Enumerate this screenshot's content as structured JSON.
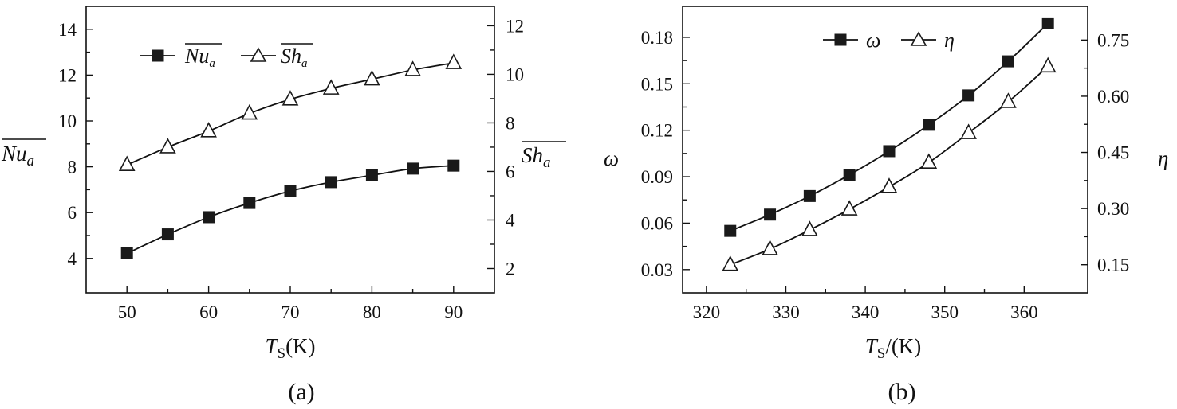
{
  "chart_data": [
    {
      "type": "line",
      "panel_label": "(a)",
      "xlabel": {
        "main": "T",
        "sub": "S",
        "suffix": "(K)"
      },
      "x": [
        50,
        55,
        60,
        65,
        70,
        75,
        80,
        85,
        90
      ],
      "xlim": [
        45,
        95
      ],
      "xticks": [
        50,
        60,
        70,
        80,
        90
      ],
      "y_left": {
        "label": "Nu",
        "label_sub": "a",
        "overline": true,
        "lim": [
          2.5,
          15
        ],
        "ticks": [
          4,
          6,
          8,
          10,
          12,
          14
        ]
      },
      "y_right": {
        "label": "Sh",
        "label_sub": "a",
        "overline": true,
        "lim": [
          1,
          12.8
        ],
        "ticks": [
          2,
          4,
          6,
          8,
          10,
          12
        ]
      },
      "series": [
        {
          "name": "Nu",
          "name_sub": "a",
          "overline": true,
          "axis": "left",
          "marker": "filled-square",
          "values": [
            4.22,
            5.05,
            5.8,
            6.42,
            6.94,
            7.33,
            7.63,
            7.92,
            8.05
          ]
        },
        {
          "name": "Sh",
          "name_sub": "a",
          "overline": true,
          "axis": "right",
          "marker": "open-triangle",
          "values": [
            6.27,
            7.0,
            7.66,
            8.39,
            8.97,
            9.42,
            9.8,
            10.18,
            10.47
          ]
        }
      ],
      "legend_position": "top-left"
    },
    {
      "type": "line",
      "panel_label": "(b)",
      "xlabel": {
        "main": "T",
        "sub": "S",
        "suffix": "/(K)"
      },
      "x": [
        323,
        328,
        333,
        338,
        343,
        348,
        353,
        358,
        363
      ],
      "xlim": [
        317,
        368
      ],
      "xticks": [
        320,
        330,
        340,
        350,
        360
      ],
      "y_left": {
        "label": "ω",
        "lim": [
          0.015,
          0.2
        ],
        "ticks": [
          0.03,
          0.06,
          0.09,
          0.12,
          0.15,
          0.18
        ],
        "tick_labels": [
          "0.03",
          "0.06",
          "0.09",
          "0.12",
          "0.15",
          "0.18"
        ]
      },
      "y_right": {
        "label": "η",
        "lim": [
          0.075,
          0.84
        ],
        "ticks": [
          0.15,
          0.3,
          0.45,
          0.6,
          0.75
        ],
        "tick_labels": [
          "0.15",
          "0.30",
          "0.45",
          "0.60",
          "0.75"
        ]
      },
      "series": [
        {
          "name": "ω",
          "axis": "left",
          "marker": "filled-square",
          "values": [
            0.055,
            0.0655,
            0.0775,
            0.0912,
            0.1065,
            0.1235,
            0.1425,
            0.1645,
            0.189
          ]
        },
        {
          "name": "η",
          "axis": "right",
          "marker": "open-triangle",
          "values": [
            0.15,
            0.192,
            0.243,
            0.298,
            0.358,
            0.423,
            0.502,
            0.585,
            0.68
          ]
        }
      ],
      "legend_position": "top-left"
    }
  ]
}
